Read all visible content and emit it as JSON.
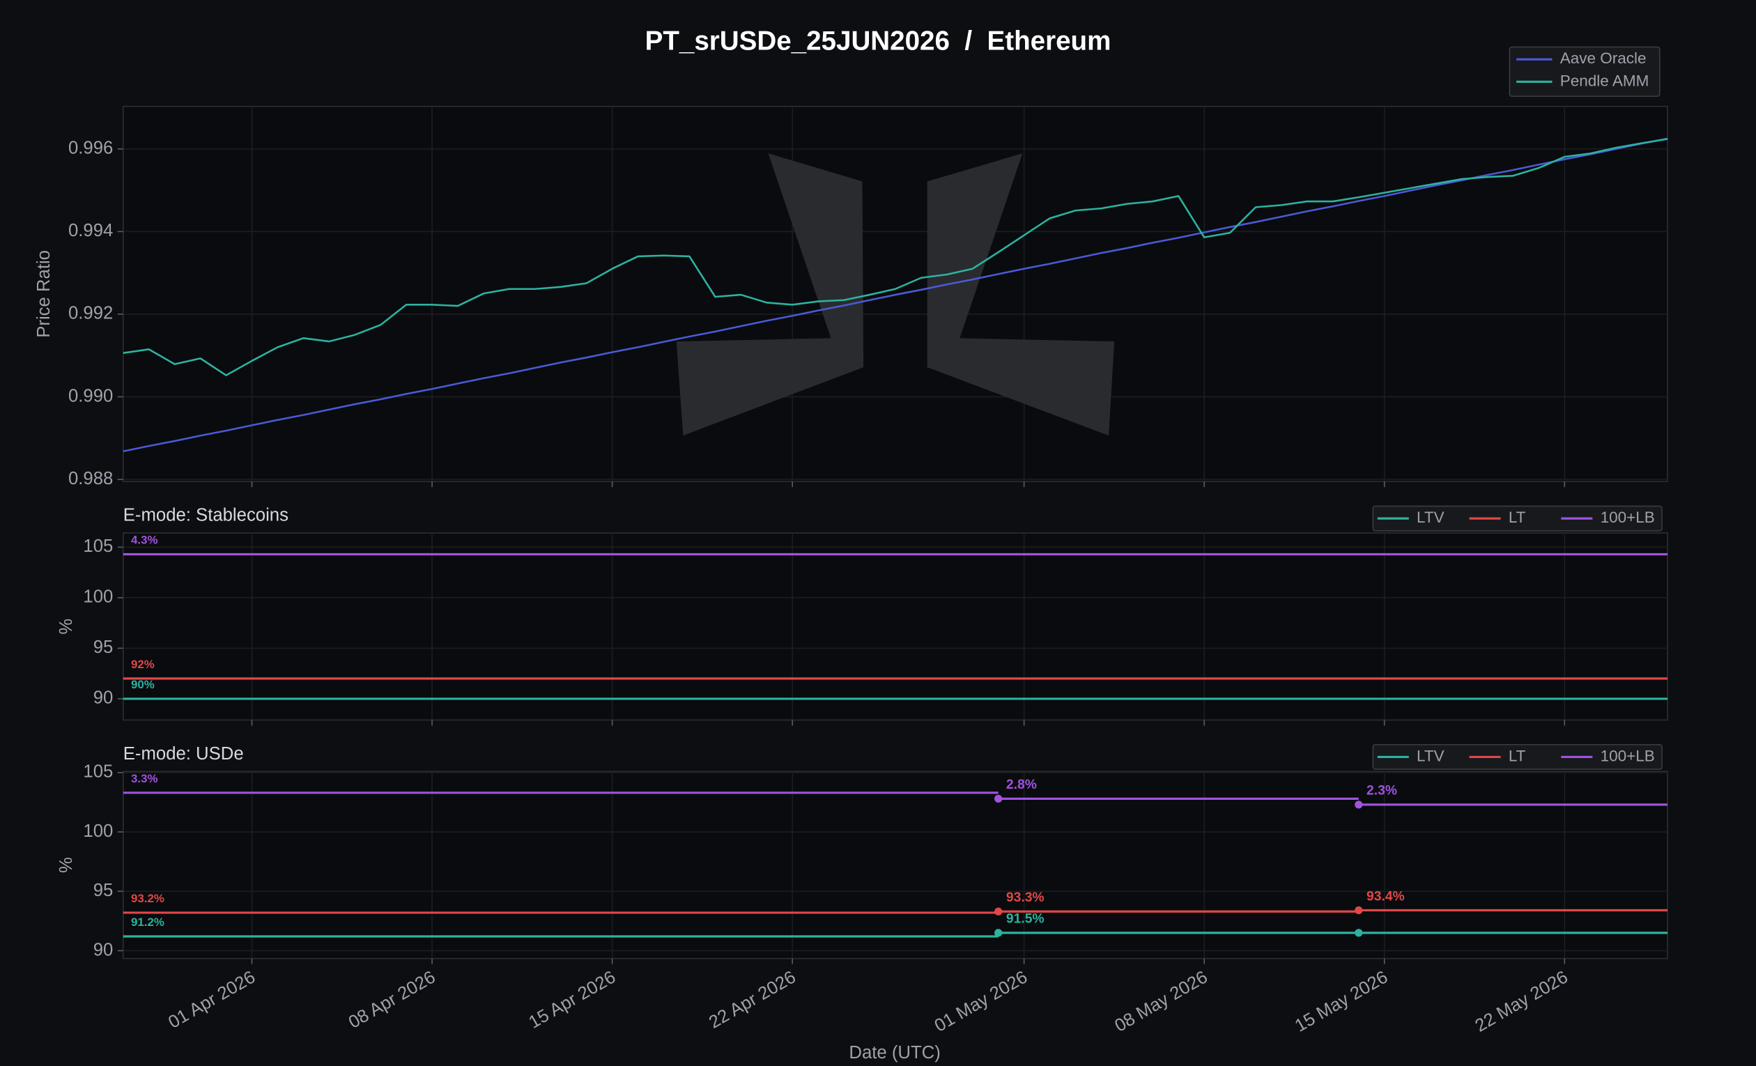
{
  "chart_data": [
    {
      "type": "line",
      "title": "PT_srUSDe_25JUN2026  /  Ethereum",
      "y_label": "Price Ratio",
      "x": [
        "2026-03-27",
        "2026-03-28",
        "2026-03-29",
        "2026-03-30",
        "2026-03-31",
        "2026-04-01",
        "2026-04-02",
        "2026-04-03",
        "2026-04-04",
        "2026-04-05",
        "2026-04-06",
        "2026-04-07",
        "2026-04-08",
        "2026-04-09",
        "2026-04-10",
        "2026-04-11",
        "2026-04-12",
        "2026-04-13",
        "2026-04-14",
        "2026-04-15",
        "2026-04-16",
        "2026-04-17",
        "2026-04-18",
        "2026-04-19",
        "2026-04-20",
        "2026-04-21",
        "2026-04-22",
        "2026-04-23",
        "2026-04-24",
        "2026-04-25",
        "2026-04-26",
        "2026-04-27",
        "2026-04-28",
        "2026-04-29",
        "2026-04-30",
        "2026-05-01",
        "2026-05-02",
        "2026-05-03",
        "2026-05-04",
        "2026-05-05",
        "2026-05-06",
        "2026-05-07",
        "2026-05-08",
        "2026-05-09",
        "2026-05-10",
        "2026-05-11",
        "2026-05-12",
        "2026-05-13",
        "2026-05-14",
        "2026-05-15",
        "2026-05-16",
        "2026-05-17",
        "2026-05-18",
        "2026-05-19",
        "2026-05-20",
        "2026-05-21",
        "2026-05-22",
        "2026-05-23",
        "2026-05-24",
        "2026-05-25",
        "2026-05-26"
      ],
      "series": [
        {
          "name": "Aave Oracle",
          "color": "#4a5ad6",
          "values": [
            0.98868,
            0.98881,
            0.98893,
            0.98906,
            0.98918,
            0.98931,
            0.98944,
            0.98956,
            0.98969,
            0.98982,
            0.98994,
            0.99007,
            0.99019,
            0.99032,
            0.99045,
            0.99057,
            0.9907,
            0.99083,
            0.99095,
            0.99108,
            0.9912,
            0.99133,
            0.99146,
            0.99158,
            0.99171,
            0.99184,
            0.99196,
            0.99209,
            0.99221,
            0.99234,
            0.99247,
            0.99259,
            0.99272,
            0.99284,
            0.99297,
            0.9931,
            0.99322,
            0.99335,
            0.99348,
            0.9936,
            0.99373,
            0.99385,
            0.99398,
            0.99411,
            0.99423,
            0.99436,
            0.99449,
            0.99461,
            0.99474,
            0.99486,
            0.99499,
            0.99512,
            0.99524,
            0.99537,
            0.99549,
            0.99562,
            0.99575,
            0.99587,
            0.996,
            0.99613,
            0.99625
          ]
        },
        {
          "name": "Pendle AMM",
          "color": "#2bb3a0",
          "values": [
            0.99106,
            0.99115,
            0.99079,
            0.99093,
            0.99052,
            0.99087,
            0.9912,
            0.99142,
            0.99134,
            0.9915,
            0.99174,
            0.99223,
            0.99223,
            0.9922,
            0.9925,
            0.99261,
            0.99261,
            0.99266,
            0.99275,
            0.9931,
            0.9934,
            0.99342,
            0.9934,
            0.99242,
            0.99247,
            0.99228,
            0.99223,
            0.99231,
            0.99234,
            0.99247,
            0.99261,
            0.99288,
            0.99296,
            0.9931,
            0.9935,
            0.99391,
            0.99432,
            0.99451,
            0.99456,
            0.99467,
            0.99473,
            0.99486,
            0.99386,
            0.99397,
            0.99459,
            0.99464,
            0.99473,
            0.99473,
            0.99483,
            0.99494,
            0.99505,
            0.99516,
            0.99527,
            0.99532,
            0.99535,
            0.99554,
            0.99581,
            0.99589,
            0.99603,
            0.99614,
            0.99624
          ]
        }
      ],
      "xlim": [
        "2026-03-27",
        "2026-05-26"
      ],
      "xticks": [
        "2026-04-01",
        "2026-04-08",
        "2026-04-15",
        "2026-04-22",
        "2026-05-01",
        "2026-05-08",
        "2026-05-15",
        "2026-05-22"
      ],
      "ylim": [
        0.98795,
        0.99703
      ],
      "yticks": [
        0.988,
        {
          "value": 0.99,
          "label": "0.990"
        },
        0.992,
        0.994,
        0.996
      ],
      "grid": true,
      "legend": "upper right",
      "legend_columns": 1
    },
    {
      "type": "line",
      "drawstyle": "steps-post",
      "subtitle": "E-mode: Stablecoins",
      "y_label": "%",
      "x": [
        "2026-03-27"
      ],
      "series": [
        {
          "name": "LTV",
          "color": "#2bb3a0",
          "values": [
            90
          ],
          "value_labels": [
            "90%"
          ]
        },
        {
          "name": "LT",
          "color": "#e04848",
          "values": [
            92
          ],
          "value_labels": [
            "92%"
          ]
        },
        {
          "name": "100+LB",
          "color": "#a052e0",
          "values": [
            104.3
          ],
          "bonus_labels": [
            "4.3%"
          ]
        }
      ],
      "xlim": [
        "2026-03-27",
        "2026-05-26"
      ],
      "xticks": [
        "2026-04-01",
        "2026-04-08",
        "2026-04-15",
        "2026-04-22",
        "2026-05-01",
        "2026-05-08",
        "2026-05-15",
        "2026-05-22"
      ],
      "ylim": [
        87.9,
        106.4
      ],
      "yticks": [
        90,
        95,
        100,
        105
      ],
      "grid": true,
      "legend": "upper right",
      "legend_columns": 3
    },
    {
      "type": "line",
      "drawstyle": "steps-post",
      "subtitle": "E-mode: USDe",
      "y_label": "%",
      "x_label": "Date (UTC)",
      "x": [
        "2026-03-27",
        "2026-04-30",
        "2026-05-14"
      ],
      "series": [
        {
          "name": "LTV",
          "color": "#2bb3a0",
          "values": [
            91.2,
            91.5,
            91.5
          ],
          "value_labels": [
            "91.2%",
            "91.5%",
            null
          ]
        },
        {
          "name": "LT",
          "color": "#e04848",
          "values": [
            93.2,
            93.3,
            93.4
          ],
          "value_labels": [
            "93.2%",
            "93.3%",
            "93.4%"
          ]
        },
        {
          "name": "100+LB",
          "color": "#a052e0",
          "values": [
            103.3,
            102.8,
            102.3
          ],
          "bonus_labels": [
            "3.3%",
            "2.8%",
            "2.3%"
          ]
        }
      ],
      "xlim": [
        "2026-03-27",
        "2026-05-26"
      ],
      "xticks": [
        {
          "value": "2026-04-01",
          "label": "01 Apr 2026"
        },
        {
          "value": "2026-04-08",
          "label": "08 Apr 2026"
        },
        {
          "value": "2026-04-15",
          "label": "15 Apr 2026"
        },
        {
          "value": "2026-04-22",
          "label": "22 Apr 2026"
        },
        {
          "value": "2026-05-01",
          "label": "01 May 2026"
        },
        {
          "value": "2026-05-08",
          "label": "08 May 2026"
        },
        {
          "value": "2026-05-15",
          "label": "15 May 2026"
        },
        {
          "value": "2026-05-22",
          "label": "22 May 2026"
        }
      ],
      "ylim": [
        89.34,
        105.09
      ],
      "yticks": [
        90,
        95,
        100,
        105
      ],
      "grid": true,
      "legend": "upper right",
      "legend_columns": 3
    }
  ]
}
